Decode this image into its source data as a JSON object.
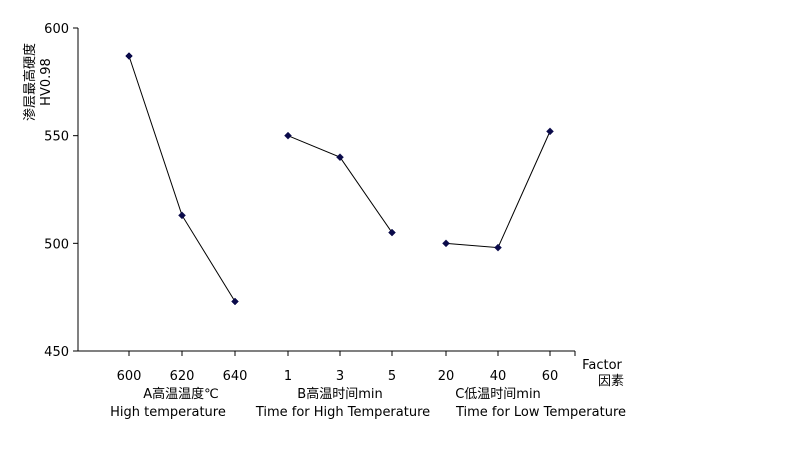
{
  "chart_data": {
    "type": "line",
    "ylabel_line1": "渗层最高硬度",
    "ylabel_line2": "HV0.98",
    "ylim": [
      450,
      600
    ],
    "y_ticks": [
      "600",
      "550",
      "500",
      "450"
    ],
    "grid": false,
    "factor_label": "Factor",
    "factor_label_cn": "因素",
    "groups": [
      {
        "label_cn": "A高温温度℃",
        "label_en": "High temperature",
        "categories": [
          "600",
          "620",
          "640"
        ],
        "values": [
          587,
          513,
          473
        ]
      },
      {
        "label_cn": "B高温时间min",
        "label_en": "Time for High Temperature",
        "categories": [
          "1",
          "3",
          "5"
        ],
        "values": [
          550,
          540,
          505
        ]
      },
      {
        "label_cn": "C低温时间min",
        "label_en": "Time for Low Temperature",
        "categories": [
          "20",
          "40",
          "60"
        ],
        "values": [
          500,
          498,
          552
        ]
      }
    ],
    "colors": {
      "line": "#000000",
      "marker": "#0a0a4a",
      "axis": "#000000"
    }
  }
}
